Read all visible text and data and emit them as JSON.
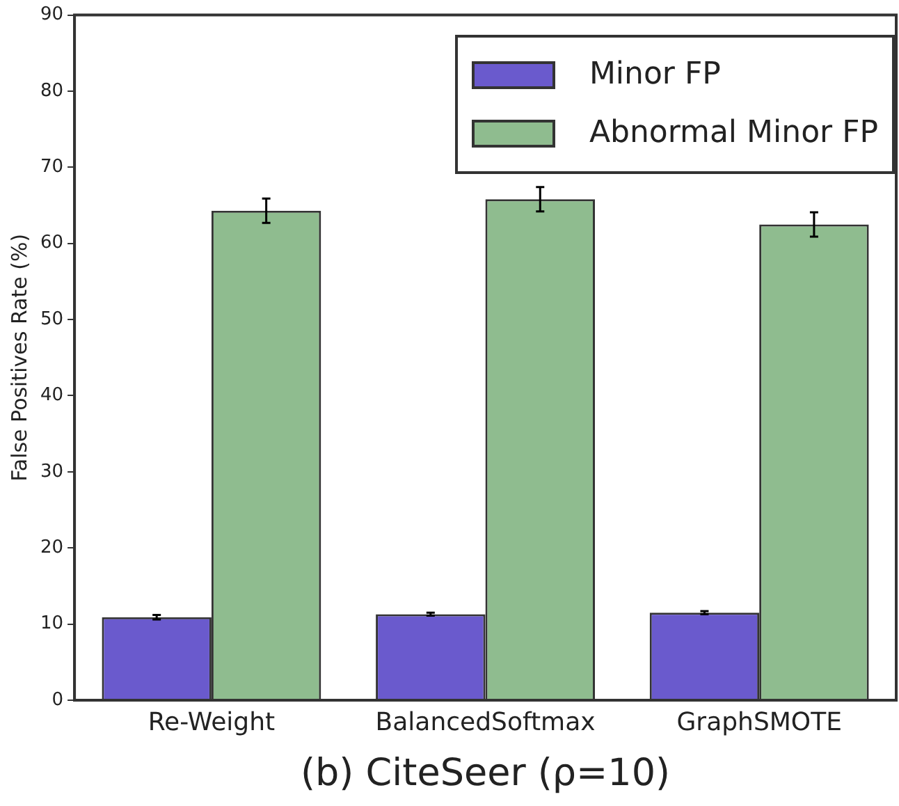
{
  "chart_data": {
    "type": "bar",
    "xlabel": "(b) CiteSeer (ρ=10)",
    "ylabel": "False Positives Rate (%)",
    "categories": [
      "Re-Weight",
      "BalancedSoftmax",
      "GraphSMOTE"
    ],
    "series": [
      {
        "name": "Minor FP",
        "color": "#6a5acd",
        "values": [
          10.9,
          11.3,
          11.5
        ],
        "errors": [
          0.3,
          0.2,
          0.2
        ]
      },
      {
        "name": "Abnormal Minor FP",
        "color": "#8fbc8f",
        "values": [
          64.3,
          65.8,
          62.5
        ],
        "errors": [
          1.6,
          1.6,
          1.6
        ]
      }
    ],
    "ylim": [
      0,
      90
    ],
    "yticks": [
      0,
      10,
      20,
      30,
      40,
      50,
      60,
      70,
      80,
      90
    ],
    "grid": false,
    "legend": "top right"
  }
}
